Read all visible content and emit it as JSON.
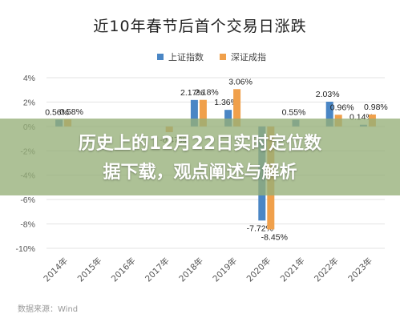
{
  "chart_data": {
    "type": "bar",
    "title": "近10年春节后首个交易日涨跌",
    "categories": [
      "2014年",
      "2015年",
      "2016年",
      "2017年",
      "2018年",
      "2019年",
      "2020年",
      "2021年",
      "2022年",
      "2023年"
    ],
    "series": [
      {
        "name": "上证指数",
        "color": "#4a86c5",
        "values": [
          0.56,
          null,
          null,
          null,
          2.17,
          1.36,
          -7.72,
          0.55,
          2.03,
          0.14
        ],
        "labels": [
          "0.56%",
          "",
          "",
          "",
          "2.17%",
          "1.36%",
          "-7.72%",
          "0.55%",
          "2.03%",
          "0.14%"
        ]
      },
      {
        "name": "深证成指",
        "color": "#f0a04b",
        "values": [
          0.58,
          null,
          null,
          -0.47,
          2.18,
          3.06,
          -8.45,
          null,
          0.96,
          0.98
        ],
        "labels": [
          "0.58%",
          "",
          "",
          "-0.47%",
          "2.18%",
          "3.06%",
          "-8.45%",
          "",
          "0.96%",
          "0.98%"
        ]
      }
    ],
    "yticks": [
      "4%",
      "2%",
      "0%",
      "-2%",
      "-4%",
      "-6%",
      "-8%",
      "-10%"
    ],
    "ylim": [
      -10,
      4
    ],
    "grid": true
  },
  "overlay_line1": "历史上的12月22日实时定位数",
  "overlay_line2": "据下载，观点阐述与解析",
  "source": "数据来源：Wind"
}
